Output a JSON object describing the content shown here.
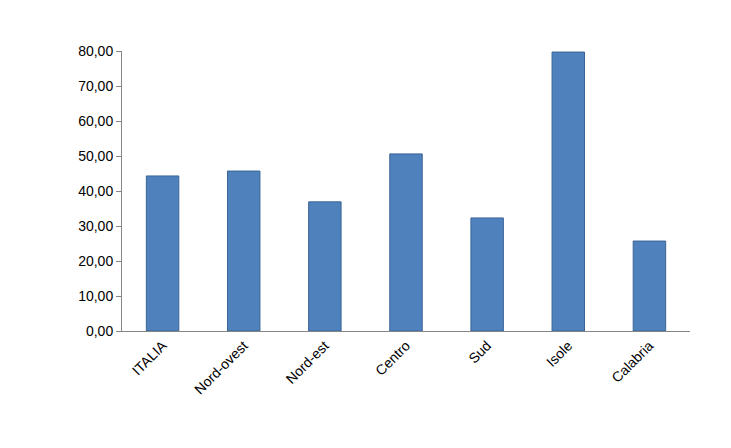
{
  "chart_data": {
    "type": "bar",
    "categories": [
      "ITALIA",
      "Nord-ovest",
      "Nord-est",
      "Centro",
      "Sud",
      "Isole",
      "Calabria"
    ],
    "values": [
      44.3,
      45.7,
      36.9,
      50.6,
      32.3,
      79.7,
      25.7
    ],
    "color": "#4f81bd",
    "ylim": [
      0,
      80
    ],
    "yticks": [
      {
        "value": 0,
        "label": "0,00"
      },
      {
        "value": 10,
        "label": "10,00"
      },
      {
        "value": 20,
        "label": "20,00"
      },
      {
        "value": 30,
        "label": "30,00"
      },
      {
        "value": 40,
        "label": "40,00"
      },
      {
        "value": 50,
        "label": "50,00"
      },
      {
        "value": 60,
        "label": "60,00"
      },
      {
        "value": 70,
        "label": "70,00"
      },
      {
        "value": 80,
        "label": "80,00"
      }
    ],
    "grid": false
  }
}
